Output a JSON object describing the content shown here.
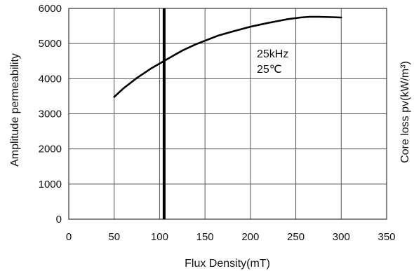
{
  "chart_data": {
    "type": "line",
    "xlabel": "Flux Density(mT)",
    "ylabel": "Amplitude permeability",
    "y2label": "Core loss pv(kW/m³)",
    "xlim": [
      0,
      350
    ],
    "ylim": [
      0,
      6000
    ],
    "x_ticks": [
      "0",
      "50",
      "100",
      "150",
      "200",
      "250",
      "300",
      "350"
    ],
    "y_ticks": [
      "0",
      "1000",
      "2000",
      "3000",
      "4000",
      "5000",
      "6000"
    ],
    "grid": true,
    "annotations": [
      "25kHz",
      "25℃"
    ],
    "vertical_marker": {
      "x": 105
    },
    "series": [
      {
        "x": [
          50,
          60,
          75,
          90,
          100,
          110,
          125,
          140,
          150,
          165,
          180,
          200,
          220,
          240,
          255,
          265,
          275,
          290,
          300
        ],
        "values": [
          3480,
          3720,
          4020,
          4280,
          4430,
          4580,
          4800,
          4980,
          5080,
          5230,
          5340,
          5480,
          5590,
          5690,
          5740,
          5760,
          5760,
          5750,
          5740
        ]
      }
    ]
  }
}
